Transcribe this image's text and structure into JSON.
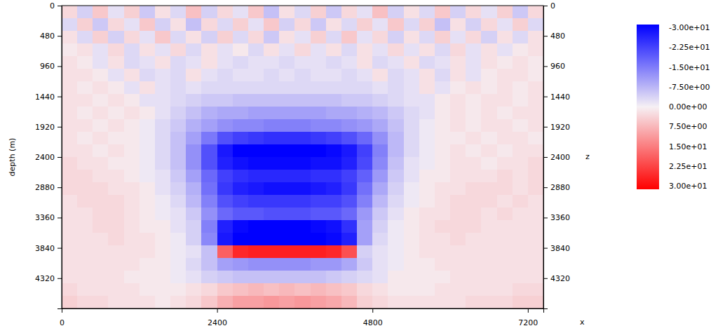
{
  "chart_data": {
    "type": "heatmap",
    "xlabel": "x",
    "ylabel": "depth (m)",
    "y2label": "z",
    "xlim": [
      0,
      7440
    ],
    "ylim": [
      0,
      4800
    ],
    "y2lim": [
      0,
      4800
    ],
    "xticks": [
      0,
      2400,
      4800,
      7200
    ],
    "yticks": [
      0,
      480,
      960,
      1440,
      1920,
      2400,
      2880,
      3360,
      3840,
      4320
    ],
    "y2ticks": [
      0,
      480,
      960,
      1440,
      1920,
      2400,
      2880,
      3360,
      3840,
      4320
    ],
    "x": [
      120,
      360,
      600,
      840,
      1080,
      1320,
      1560,
      1800,
      2040,
      2280,
      2520,
      2760,
      3000,
      3240,
      3480,
      3720,
      3960,
      4200,
      4440,
      4680,
      4920,
      5160,
      5400,
      5640,
      5880,
      6120,
      6360,
      6600,
      6840,
      7080,
      7320
    ],
    "y": [
      100,
      300,
      500,
      700,
      900,
      1100,
      1300,
      1500,
      1700,
      1900,
      2100,
      2300,
      2500,
      2700,
      2900,
      3100,
      3300,
      3500,
      3700,
      3900,
      4100,
      4300,
      4500,
      4700
    ],
    "values": [
      [
        3,
        -4,
        5,
        -2,
        4,
        -5,
        2,
        -3,
        6,
        -4,
        3,
        -2,
        5,
        -6,
        2,
        -3,
        4,
        -5,
        3,
        -2,
        6,
        -4,
        2,
        -3,
        5,
        -4,
        3,
        -2,
        4,
        -5,
        3
      ],
      [
        -3,
        4,
        -5,
        3,
        -2,
        5,
        -4,
        2,
        -6,
        3,
        -3,
        4,
        -2,
        5,
        -4,
        3,
        -5,
        2,
        -3,
        4,
        -2,
        5,
        -3,
        4,
        -6,
        2,
        -4,
        3,
        -2,
        4,
        -3
      ],
      [
        2,
        -3,
        4,
        -4,
        3,
        -2,
        5,
        -3,
        2,
        -4,
        4,
        -3,
        3,
        -5,
        2,
        -2,
        4,
        -3,
        5,
        -2,
        3,
        -4,
        2,
        -3,
        4,
        -2,
        3,
        -4,
        2,
        -3,
        2
      ],
      [
        1,
        2,
        -2,
        3,
        -3,
        2,
        -2,
        3,
        -3,
        2,
        -2,
        1,
        -3,
        2,
        -2,
        3,
        -2,
        2,
        -3,
        2,
        -2,
        3,
        -2,
        2,
        -3,
        3,
        -2,
        2,
        -2,
        1,
        2
      ],
      [
        2,
        1,
        -2,
        2,
        -3,
        -2,
        2,
        -3,
        -2,
        2,
        -2,
        -3,
        -2,
        -2,
        -3,
        -2,
        -2,
        -3,
        -2,
        2,
        -3,
        -2,
        2,
        -3,
        -2,
        2,
        -2,
        2,
        1,
        2,
        1
      ],
      [
        2,
        2,
        1,
        -2,
        2,
        -3,
        -2,
        -3,
        2,
        -2,
        -3,
        -2,
        -2,
        -3,
        -2,
        -3,
        -2,
        -2,
        -3,
        -2,
        2,
        -3,
        -2,
        2,
        -3,
        2,
        -2,
        1,
        2,
        2,
        1
      ],
      [
        2,
        1,
        2,
        1,
        -2,
        2,
        -2,
        -3,
        -2,
        -3,
        -3,
        -3,
        -3,
        -3,
        -3,
        -3,
        -3,
        -3,
        -3,
        -3,
        -2,
        -3,
        -2,
        2,
        -2,
        1,
        2,
        1,
        2,
        1,
        2
      ],
      [
        2,
        2,
        1,
        2,
        1,
        -2,
        -2,
        -3,
        -4,
        -5,
        -5,
        -6,
        -6,
        -6,
        -6,
        -6,
        -6,
        -6,
        -5,
        -5,
        -4,
        -3,
        -2,
        -2,
        1,
        2,
        1,
        2,
        2,
        1,
        2
      ],
      [
        2,
        1,
        2,
        1,
        2,
        1,
        -2,
        -4,
        -6,
        -8,
        -9,
        -9,
        -10,
        -10,
        -10,
        -10,
        -10,
        -9,
        -9,
        -8,
        -7,
        -5,
        -3,
        -2,
        1,
        2,
        1,
        2,
        1,
        2,
        2
      ],
      [
        2,
        2,
        1,
        2,
        1,
        -1,
        -3,
        -5,
        -8,
        -10,
        -12,
        -13,
        -13,
        -14,
        -14,
        -14,
        -13,
        -13,
        -12,
        -11,
        -9,
        -6,
        -3,
        -1,
        1,
        2,
        1,
        2,
        2,
        1,
        2
      ],
      [
        2,
        1,
        2,
        1,
        1,
        -1,
        -3,
        -6,
        -10,
        -15,
        -20,
        -22,
        -23,
        -24,
        -24,
        -24,
        -23,
        -22,
        -20,
        -17,
        -12,
        -7,
        -3,
        -1,
        1,
        1,
        2,
        1,
        2,
        2,
        1
      ],
      [
        2,
        2,
        1,
        2,
        1,
        -1,
        -3,
        -6,
        -12,
        -20,
        -27,
        -30,
        -30,
        -30,
        -30,
        -30,
        -30,
        -29,
        -27,
        -22,
        -14,
        -7,
        -3,
        -1,
        1,
        2,
        1,
        2,
        1,
        2,
        2
      ],
      [
        3,
        2,
        2,
        1,
        1,
        -1,
        -3,
        -6,
        -12,
        -20,
        -26,
        -28,
        -29,
        -29,
        -29,
        -29,
        -28,
        -28,
        -26,
        -21,
        -13,
        -6,
        -2,
        -1,
        1,
        2,
        2,
        1,
        2,
        2,
        3
      ],
      [
        3,
        3,
        2,
        2,
        1,
        -1,
        -2,
        -5,
        -10,
        -17,
        -22,
        -24,
        -25,
        -25,
        -25,
        -25,
        -24,
        -24,
        -22,
        -18,
        -11,
        -5,
        -2,
        1,
        1,
        2,
        2,
        2,
        3,
        2,
        3
      ],
      [
        3,
        3,
        3,
        2,
        2,
        1,
        -2,
        -4,
        -8,
        -16,
        -23,
        -26,
        -27,
        -28,
        -28,
        -28,
        -27,
        -26,
        -23,
        -16,
        -9,
        -4,
        -1,
        1,
        2,
        2,
        3,
        3,
        3,
        2,
        3
      ],
      [
        2,
        3,
        3,
        3,
        2,
        1,
        -1,
        -3,
        -7,
        -14,
        -20,
        -22,
        -23,
        -23,
        -23,
        -23,
        -22,
        -22,
        -20,
        -14,
        -7,
        -3,
        -1,
        1,
        2,
        3,
        3,
        3,
        2,
        3,
        2
      ],
      [
        2,
        2,
        3,
        3,
        2,
        1,
        -1,
        -2,
        -5,
        -12,
        -17,
        -19,
        -19,
        -20,
        -20,
        -20,
        -19,
        -19,
        -17,
        -11,
        -5,
        -2,
        1,
        2,
        2,
        3,
        3,
        2,
        3,
        2,
        2
      ],
      [
        2,
        2,
        3,
        3,
        2,
        1,
        1,
        -2,
        -4,
        -14,
        -26,
        -29,
        -30,
        -30,
        -30,
        -30,
        -29,
        -28,
        -24,
        -10,
        -4,
        -1,
        1,
        2,
        3,
        3,
        3,
        2,
        2,
        2,
        2
      ],
      [
        2,
        2,
        2,
        3,
        2,
        2,
        1,
        -1,
        -4,
        -13,
        -27,
        -30,
        -30,
        -30,
        -30,
        -30,
        -30,
        -29,
        -26,
        -10,
        -3,
        -1,
        1,
        2,
        2,
        3,
        2,
        2,
        2,
        2,
        2
      ],
      [
        2,
        2,
        2,
        2,
        2,
        2,
        1,
        -1,
        -2,
        -6,
        18,
        25,
        26,
        26,
        26,
        26,
        26,
        25,
        20,
        -4,
        -2,
        -1,
        1,
        2,
        2,
        2,
        2,
        2,
        2,
        2,
        2
      ],
      [
        2,
        2,
        2,
        2,
        2,
        1,
        1,
        -1,
        -3,
        -6,
        -10,
        -11,
        -12,
        -12,
        -12,
        -12,
        -11,
        -11,
        -9,
        -5,
        -2,
        -1,
        1,
        1,
        2,
        2,
        2,
        2,
        2,
        2,
        2
      ],
      [
        2,
        2,
        2,
        2,
        1,
        1,
        1,
        -1,
        -2,
        -4,
        -5,
        -6,
        -6,
        -6,
        -6,
        -6,
        -6,
        -5,
        -4,
        -3,
        -2,
        1,
        1,
        1,
        1,
        2,
        2,
        2,
        2,
        2,
        2
      ],
      [
        3,
        2,
        2,
        2,
        2,
        1,
        1,
        1,
        2,
        3,
        5,
        6,
        7,
        6,
        7,
        6,
        7,
        6,
        5,
        3,
        2,
        1,
        1,
        1,
        2,
        2,
        2,
        2,
        2,
        3,
        3
      ],
      [
        4,
        3,
        3,
        2,
        2,
        2,
        1,
        2,
        3,
        5,
        8,
        10,
        10,
        11,
        10,
        11,
        10,
        9,
        7,
        4,
        3,
        2,
        2,
        2,
        2,
        2,
        3,
        3,
        3,
        4,
        4
      ]
    ],
    "colorbar": {
      "range": [
        -30,
        30
      ],
      "ticks": [
        {
          "value": -30,
          "label": "-3.00e+01"
        },
        {
          "value": -22.5,
          "label": "-2.25e+01"
        },
        {
          "value": -15,
          "label": "-1.50e+01"
        },
        {
          "value": -7.5,
          "label": "-7.50e+00"
        },
        {
          "value": 0,
          "label": "0.00e+00"
        },
        {
          "value": 7.5,
          "label": "7.50e+00"
        },
        {
          "value": 15,
          "label": "1.50e+01"
        },
        {
          "value": 22.5,
          "label": "2.25e+01"
        },
        {
          "value": 30,
          "label": "3.00e+01"
        }
      ]
    }
  }
}
